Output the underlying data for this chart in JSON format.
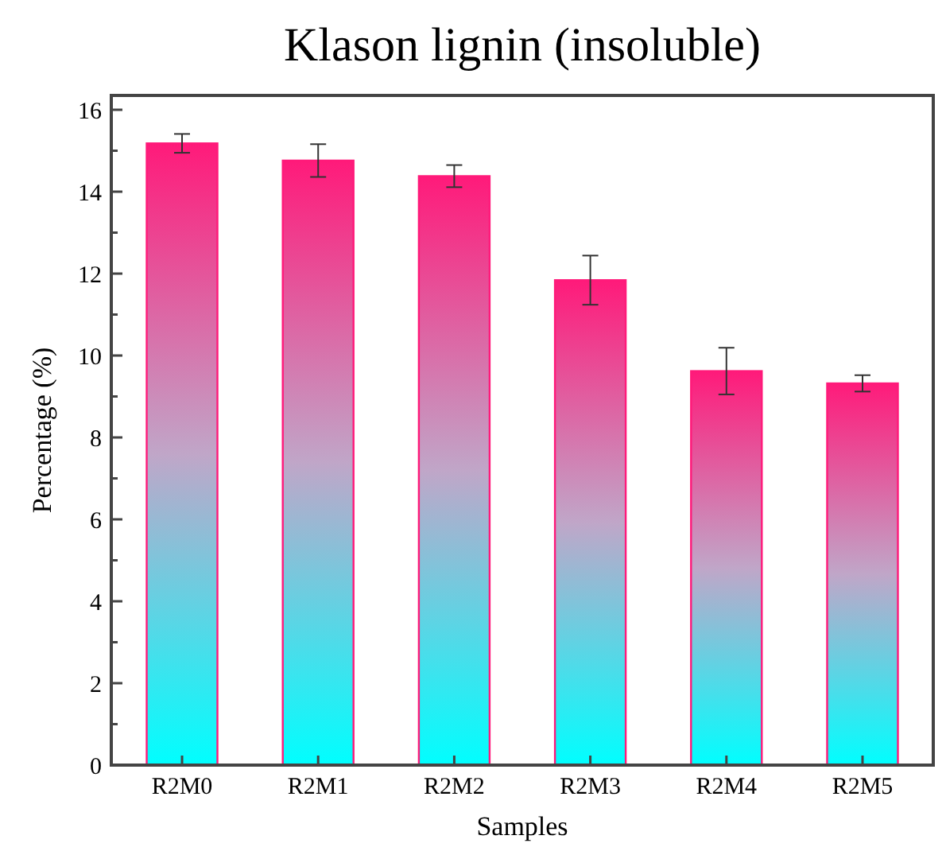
{
  "chart_data": {
    "type": "bar",
    "title": "Klason lignin (insoluble)",
    "xlabel": "Samples",
    "ylabel": "Percentage (%)",
    "categories": [
      "R2M0",
      "R2M1",
      "R2M2",
      "R2M3",
      "R2M4",
      "R2M5"
    ],
    "series": [
      {
        "color": "#ff1a7a",
        "values": [
          15.18,
          14.76,
          14.38,
          11.84,
          9.62,
          9.32
        ],
        "errors": [
          0.23,
          0.4,
          0.27,
          0.6,
          0.57,
          0.2
        ]
      }
    ],
    "ylim": [
      0,
      16.35
    ],
    "yticks": [
      0,
      {
        "value": 1,
        "label": null
      },
      2,
      {
        "value": 3,
        "label": null
      },
      4,
      {
        "value": 5,
        "label": null
      },
      6,
      {
        "value": 7,
        "label": null
      },
      8,
      {
        "value": 9,
        "label": null
      },
      10,
      {
        "value": 11,
        "label": null
      },
      12,
      {
        "value": 13,
        "label": null
      },
      14,
      {
        "value": 15,
        "label": null
      },
      16
    ],
    "grid": false
  }
}
